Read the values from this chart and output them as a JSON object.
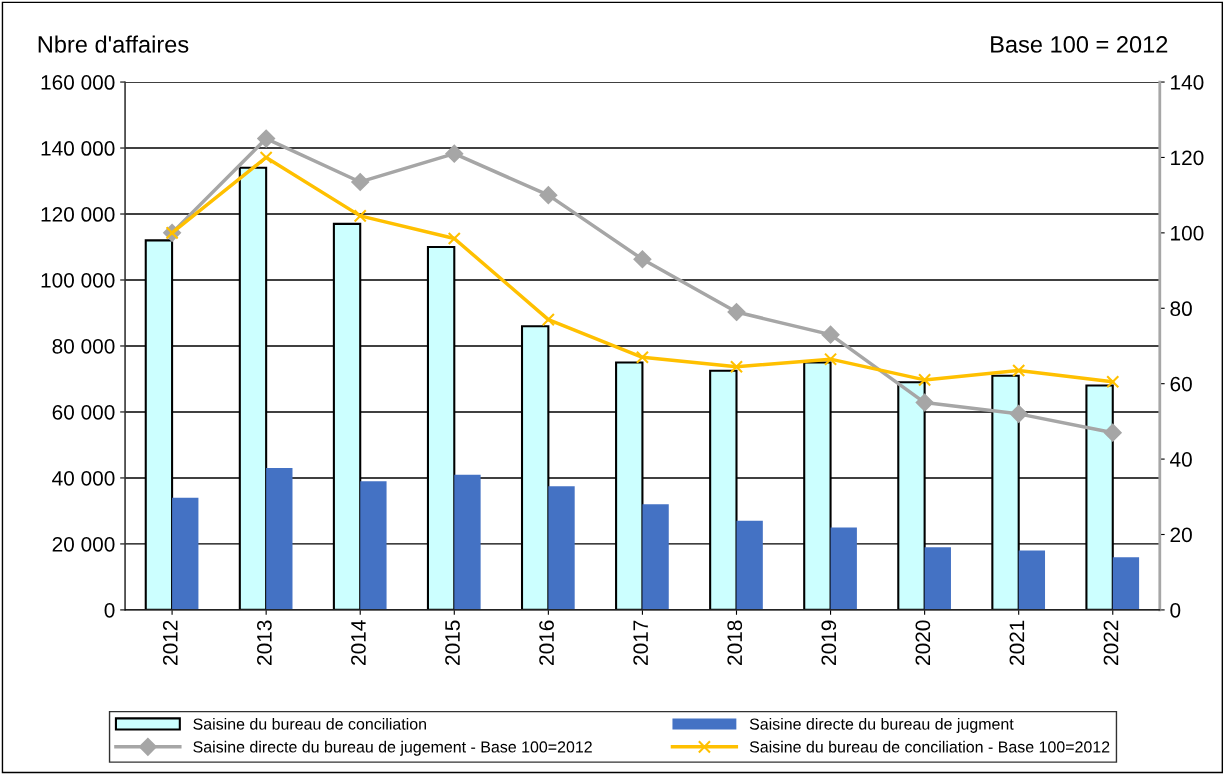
{
  "chart_data": {
    "type": "bar",
    "ylabel": "Nbre d'affaires",
    "y2label": "Base 100 = 2012",
    "categories": [
      "2012",
      "2013",
      "2014",
      "2015",
      "2016",
      "2017",
      "2018",
      "2019",
      "2020",
      "2021",
      "2022"
    ],
    "series": [
      {
        "name": "Saisine du bureau de conciliation",
        "color": "#ccffff",
        "values": [
          112000,
          134000,
          117000,
          110000,
          86000,
          75000,
          72500,
          75000,
          69000,
          71000,
          68000
        ]
      },
      {
        "name": "Saisine directe du bureau de jugment",
        "color": "#4472c4",
        "values": [
          34000,
          43000,
          39000,
          41000,
          37500,
          32000,
          27000,
          25000,
          19000,
          18000,
          16000
        ]
      },
      {
        "name": "Saisine directe du bureau de jugement - Base 100=2012",
        "type": "line",
        "axis": "y2",
        "marker": "diamond",
        "color": "#a6a6a6",
        "values": [
          100,
          125,
          113.5,
          121,
          110,
          93,
          79,
          73,
          55,
          52,
          47
        ]
      },
      {
        "name": "Saisine du bureau de conciliation - Base 100=2012",
        "type": "line",
        "axis": "y2",
        "marker": "cross",
        "color": "#ffc000",
        "values": [
          100,
          120,
          104.5,
          98.5,
          77,
          67,
          64.5,
          66.5,
          61,
          63.5,
          60.5
        ]
      }
    ],
    "ylim": [
      0,
      160000
    ],
    "yticks": [
      {
        "value": 0,
        "label": "0"
      },
      {
        "value": 20000,
        "label": "20 000"
      },
      {
        "value": 40000,
        "label": "40 000"
      },
      {
        "value": 60000,
        "label": "60 000"
      },
      {
        "value": 80000,
        "label": "80 000"
      },
      {
        "value": 100000,
        "label": "100 000"
      },
      {
        "value": 120000,
        "label": "120 000"
      },
      {
        "value": 140000,
        "label": "140 000"
      },
      {
        "value": 160000,
        "label": "160 000"
      }
    ],
    "y2lim": [
      0,
      140
    ],
    "y2ticks": [
      0,
      20,
      40,
      60,
      80,
      100,
      120,
      140
    ],
    "grid": "y",
    "legend": "bottom"
  }
}
